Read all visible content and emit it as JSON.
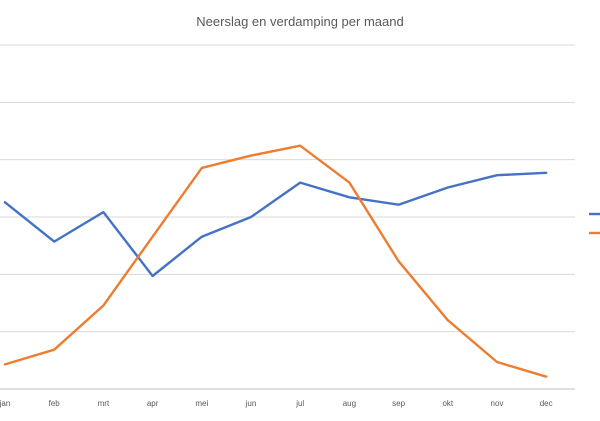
{
  "chart_data": {
    "type": "line",
    "title": "Neerslag en verdamping per maand",
    "xlabel": "",
    "ylabel": "",
    "categories": [
      "jan",
      "feb",
      "mrt",
      "apr",
      "mei",
      "jun",
      "jul",
      "aug",
      "sep",
      "okt",
      "nov",
      "dec"
    ],
    "ylim": [
      0,
      7
    ],
    "grid": true,
    "legend": "right",
    "series": [
      {
        "color": "#4472c4",
        "values": [
          3.8,
          3.0,
          3.6,
          2.3,
          3.1,
          3.5,
          4.2,
          3.9,
          3.75,
          4.1,
          4.35,
          4.4
        ]
      },
      {
        "color": "#ed7d31",
        "values": [
          0.5,
          0.8,
          1.7,
          3.1,
          4.5,
          4.75,
          4.95,
          4.2,
          2.6,
          1.4,
          0.55,
          0.25
        ]
      }
    ]
  }
}
